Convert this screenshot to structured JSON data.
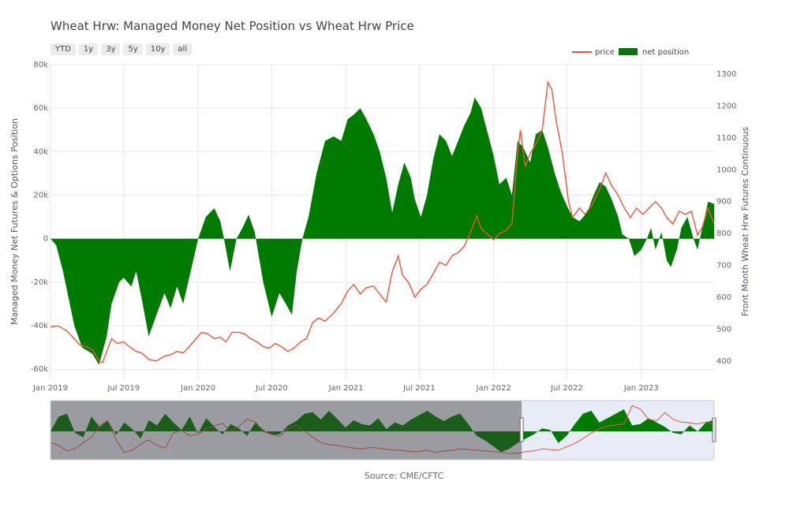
{
  "title": "Wheat Hrw: Managed Money Net Position vs Wheat Hrw Price",
  "range_buttons": [
    "YTD",
    "1y",
    "3y",
    "5y",
    "10y",
    "all"
  ],
  "source": "Source: CME/CFTC",
  "colors": {
    "price": "#e8563a",
    "net_position": "#007a00",
    "grid": "#e6e6e6"
  },
  "chart_data": {
    "type": "area",
    "title": "Wheat Hrw: Managed Money Net Position vs Wheat Hrw Price",
    "xlabel": "",
    "ylabel": "Managed Money Net Futures & Options Position",
    "y2label": "Front Month Wheat Hrw Futures Continuous",
    "xlim": [
      "2019-01-01",
      "2023-06-30"
    ],
    "ylim": [
      -65000,
      80000
    ],
    "y2lim": [
      340,
      1330
    ],
    "x_ticks": [
      "Jan 2019",
      "Jul 2019",
      "Jan 2020",
      "Jul 2020",
      "Jan 2021",
      "Jul 2021",
      "Jan 2022",
      "Jul 2022",
      "Jan 2023"
    ],
    "y_ticks": [
      "80k",
      "60k",
      "40k",
      "20k",
      "0",
      "-20k",
      "-40k",
      "-60k"
    ],
    "y2_ticks": [
      "1300",
      "1200",
      "1100",
      "1000",
      "900",
      "800",
      "700",
      "600",
      "500",
      "400"
    ],
    "legend_position": "top-right",
    "series": [
      {
        "name": "net position",
        "axis": "left",
        "style": "area",
        "points": [
          [
            "2019-01-01",
            0
          ],
          [
            "2019-01-15",
            -3000
          ],
          [
            "2019-02-01",
            -15000
          ],
          [
            "2019-03-01",
            -40000
          ],
          [
            "2019-03-20",
            -50000
          ],
          [
            "2019-04-15",
            -53000
          ],
          [
            "2019-05-01",
            -58000
          ],
          [
            "2019-05-20",
            -45000
          ],
          [
            "2019-06-01",
            -30000
          ],
          [
            "2019-06-20",
            -20000
          ],
          [
            "2019-07-01",
            -18000
          ],
          [
            "2019-07-20",
            -22000
          ],
          [
            "2019-08-01",
            -15000
          ],
          [
            "2019-08-15",
            -28000
          ],
          [
            "2019-09-01",
            -45000
          ],
          [
            "2019-09-20",
            -35000
          ],
          [
            "2019-10-10",
            -25000
          ],
          [
            "2019-10-25",
            -32000
          ],
          [
            "2019-11-10",
            -22000
          ],
          [
            "2019-11-25",
            -30000
          ],
          [
            "2019-12-10",
            -18000
          ],
          [
            "2019-12-20",
            -10000
          ],
          [
            "2020-01-01",
            0
          ],
          [
            "2020-01-20",
            10000
          ],
          [
            "2020-02-10",
            14000
          ],
          [
            "2020-02-25",
            8000
          ],
          [
            "2020-03-05",
            0
          ],
          [
            "2020-03-20",
            -15000
          ],
          [
            "2020-04-05",
            0
          ],
          [
            "2020-04-20",
            5000
          ],
          [
            "2020-05-05",
            11000
          ],
          [
            "2020-05-20",
            3000
          ],
          [
            "2020-06-10",
            -20000
          ],
          [
            "2020-07-01",
            -36000
          ],
          [
            "2020-07-20",
            -25000
          ],
          [
            "2020-08-05",
            -30000
          ],
          [
            "2020-08-20",
            -35000
          ],
          [
            "2020-09-01",
            -15000
          ],
          [
            "2020-09-15",
            0
          ],
          [
            "2020-09-30",
            10000
          ],
          [
            "2020-10-20",
            30000
          ],
          [
            "2020-11-10",
            45000
          ],
          [
            "2020-12-01",
            47000
          ],
          [
            "2020-12-20",
            45000
          ],
          [
            "2021-01-05",
            55000
          ],
          [
            "2021-01-20",
            57000
          ],
          [
            "2021-02-05",
            60000
          ],
          [
            "2021-02-20",
            55000
          ],
          [
            "2021-03-10",
            48000
          ],
          [
            "2021-03-25",
            40000
          ],
          [
            "2021-04-10",
            28000
          ],
          [
            "2021-04-25",
            12000
          ],
          [
            "2021-05-10",
            25000
          ],
          [
            "2021-05-25",
            35000
          ],
          [
            "2021-06-10",
            28000
          ],
          [
            "2021-06-20",
            18000
          ],
          [
            "2021-07-05",
            10000
          ],
          [
            "2021-07-20",
            20000
          ],
          [
            "2021-08-05",
            37000
          ],
          [
            "2021-08-20",
            48000
          ],
          [
            "2021-09-05",
            45000
          ],
          [
            "2021-09-20",
            38000
          ],
          [
            "2021-10-05",
            45000
          ],
          [
            "2021-10-20",
            52000
          ],
          [
            "2021-11-05",
            58000
          ],
          [
            "2021-11-15",
            65000
          ],
          [
            "2021-12-01",
            60000
          ],
          [
            "2021-12-15",
            50000
          ],
          [
            "2022-01-01",
            38000
          ],
          [
            "2022-01-15",
            25000
          ],
          [
            "2022-02-01",
            28000
          ],
          [
            "2022-02-15",
            20000
          ],
          [
            "2022-03-01",
            45000
          ],
          [
            "2022-03-15",
            42000
          ],
          [
            "2022-04-01",
            35000
          ],
          [
            "2022-04-15",
            48000
          ],
          [
            "2022-05-01",
            50000
          ],
          [
            "2022-05-15",
            42000
          ],
          [
            "2022-06-01",
            30000
          ],
          [
            "2022-06-15",
            22000
          ],
          [
            "2022-07-01",
            15000
          ],
          [
            "2022-07-15",
            10000
          ],
          [
            "2022-08-01",
            8000
          ],
          [
            "2022-08-20",
            12000
          ],
          [
            "2022-09-05",
            20000
          ],
          [
            "2022-09-20",
            26000
          ],
          [
            "2022-10-05",
            24000
          ],
          [
            "2022-10-20",
            18000
          ],
          [
            "2022-11-05",
            10000
          ],
          [
            "2022-11-15",
            2000
          ],
          [
            "2022-12-01",
            0
          ],
          [
            "2022-12-15",
            -8000
          ],
          [
            "2023-01-01",
            -5000
          ],
          [
            "2023-01-15",
            0
          ],
          [
            "2023-01-25",
            5000
          ],
          [
            "2023-02-05",
            -5000
          ],
          [
            "2023-02-20",
            3000
          ],
          [
            "2023-03-05",
            -10000
          ],
          [
            "2023-03-15",
            -13000
          ],
          [
            "2023-03-30",
            -5000
          ],
          [
            "2023-04-10",
            5000
          ],
          [
            "2023-04-25",
            10000
          ],
          [
            "2023-05-10",
            0
          ],
          [
            "2023-05-20",
            -5000
          ],
          [
            "2023-06-01",
            5000
          ],
          [
            "2023-06-15",
            17000
          ],
          [
            "2023-06-30",
            16000
          ]
        ]
      },
      {
        "name": "price",
        "axis": "right",
        "style": "line",
        "points": [
          [
            "2019-01-01",
            507
          ],
          [
            "2019-01-20",
            510
          ],
          [
            "2019-02-10",
            495
          ],
          [
            "2019-03-01",
            470
          ],
          [
            "2019-03-15",
            450
          ],
          [
            "2019-04-01",
            445
          ],
          [
            "2019-04-15",
            435
          ],
          [
            "2019-05-01",
            400
          ],
          [
            "2019-05-10",
            395
          ],
          [
            "2019-05-20",
            430
          ],
          [
            "2019-06-01",
            470
          ],
          [
            "2019-06-15",
            455
          ],
          [
            "2019-07-01",
            460
          ],
          [
            "2019-07-15",
            445
          ],
          [
            "2019-08-01",
            430
          ],
          [
            "2019-08-15",
            425
          ],
          [
            "2019-09-01",
            405
          ],
          [
            "2019-09-20",
            400
          ],
          [
            "2019-10-10",
            415
          ],
          [
            "2019-10-25",
            420
          ],
          [
            "2019-11-10",
            430
          ],
          [
            "2019-11-25",
            425
          ],
          [
            "2019-12-10",
            445
          ],
          [
            "2019-12-20",
            460
          ],
          [
            "2020-01-10",
            490
          ],
          [
            "2020-01-25",
            485
          ],
          [
            "2020-02-10",
            470
          ],
          [
            "2020-02-25",
            475
          ],
          [
            "2020-03-10",
            460
          ],
          [
            "2020-03-25",
            490
          ],
          [
            "2020-04-10",
            490
          ],
          [
            "2020-04-25",
            485
          ],
          [
            "2020-05-10",
            470
          ],
          [
            "2020-05-25",
            460
          ],
          [
            "2020-06-10",
            445
          ],
          [
            "2020-06-25",
            440
          ],
          [
            "2020-07-10",
            455
          ],
          [
            "2020-07-25",
            445
          ],
          [
            "2020-08-10",
            430
          ],
          [
            "2020-08-25",
            440
          ],
          [
            "2020-09-10",
            460
          ],
          [
            "2020-09-25",
            470
          ],
          [
            "2020-10-10",
            520
          ],
          [
            "2020-10-25",
            535
          ],
          [
            "2020-11-10",
            525
          ],
          [
            "2020-12-01",
            550
          ],
          [
            "2020-12-20",
            580
          ],
          [
            "2021-01-05",
            620
          ],
          [
            "2021-01-20",
            640
          ],
          [
            "2021-02-05",
            610
          ],
          [
            "2021-02-20",
            630
          ],
          [
            "2021-03-10",
            635
          ],
          [
            "2021-03-25",
            610
          ],
          [
            "2021-04-10",
            585
          ],
          [
            "2021-04-25",
            680
          ],
          [
            "2021-05-10",
            730
          ],
          [
            "2021-05-20",
            670
          ],
          [
            "2021-06-05",
            645
          ],
          [
            "2021-06-20",
            600
          ],
          [
            "2021-07-05",
            625
          ],
          [
            "2021-07-20",
            640
          ],
          [
            "2021-08-05",
            675
          ],
          [
            "2021-08-20",
            710
          ],
          [
            "2021-09-05",
            700
          ],
          [
            "2021-09-20",
            730
          ],
          [
            "2021-10-05",
            740
          ],
          [
            "2021-10-20",
            760
          ],
          [
            "2021-11-05",
            805
          ],
          [
            "2021-11-20",
            855
          ],
          [
            "2021-12-01",
            815
          ],
          [
            "2021-12-15",
            800
          ],
          [
            "2022-01-01",
            780
          ],
          [
            "2022-01-15",
            800
          ],
          [
            "2022-02-01",
            810
          ],
          [
            "2022-02-15",
            830
          ],
          [
            "2022-03-01",
            1050
          ],
          [
            "2022-03-08",
            1125
          ],
          [
            "2022-03-20",
            1010
          ],
          [
            "2022-04-01",
            1050
          ],
          [
            "2022-04-15",
            1080
          ],
          [
            "2022-05-01",
            1125
          ],
          [
            "2022-05-15",
            1275
          ],
          [
            "2022-05-25",
            1250
          ],
          [
            "2022-06-05",
            1150
          ],
          [
            "2022-06-20",
            1050
          ],
          [
            "2022-07-05",
            900
          ],
          [
            "2022-07-15",
            850
          ],
          [
            "2022-08-01",
            880
          ],
          [
            "2022-08-15",
            860
          ],
          [
            "2022-09-01",
            890
          ],
          [
            "2022-09-20",
            940
          ],
          [
            "2022-10-05",
            990
          ],
          [
            "2022-10-20",
            950
          ],
          [
            "2022-11-05",
            920
          ],
          [
            "2022-11-20",
            880
          ],
          [
            "2022-12-05",
            850
          ],
          [
            "2022-12-20",
            880
          ],
          [
            "2023-01-05",
            860
          ],
          [
            "2023-01-20",
            880
          ],
          [
            "2023-02-05",
            900
          ],
          [
            "2023-02-20",
            880
          ],
          [
            "2023-03-05",
            850
          ],
          [
            "2023-03-20",
            830
          ],
          [
            "2023-04-05",
            870
          ],
          [
            "2023-04-20",
            860
          ],
          [
            "2023-05-05",
            870
          ],
          [
            "2023-05-20",
            795
          ],
          [
            "2023-06-01",
            820
          ],
          [
            "2023-06-15",
            880
          ],
          [
            "2023-06-30",
            830
          ]
        ]
      }
    ],
    "navigator": {
      "xlim": [
        "2008-01-01",
        "2023-06-30"
      ],
      "selected_range": [
        "2019-01-01",
        "2023-06-30"
      ],
      "net_position": [
        0,
        20000,
        24000,
        -2000,
        -8000,
        20000,
        6000,
        15000,
        -5000,
        12000,
        3000,
        -10000,
        15000,
        8000,
        24000,
        12000,
        2000,
        20000,
        -3000,
        18000,
        6000,
        -4000,
        10000,
        4000,
        -6000,
        12000,
        2000,
        -5000,
        -4000,
        8000,
        14000,
        24000,
        26000,
        16000,
        28000,
        17000,
        5000,
        15000,
        10000,
        8000,
        18000,
        3000,
        12000,
        8000,
        16000,
        22000,
        28000,
        20000,
        14000,
        20000,
        24000,
        10000,
        -6000,
        -12000,
        -20000,
        -28000,
        -24000,
        -16000,
        -10000,
        -4000,
        4000,
        2000,
        -16000,
        -6000,
        10000,
        24000,
        28000,
        12000,
        18000,
        24000,
        30000,
        8000,
        10000,
        18000,
        12000,
        6000,
        -2000,
        -4000,
        8000,
        0,
        12000,
        16000
      ],
      "price": [
        560,
        520,
        440,
        470,
        560,
        640,
        810,
        880,
        600,
        420,
        450,
        540,
        600,
        520,
        480,
        700,
        740,
        660,
        680,
        760,
        810,
        840,
        720,
        800,
        900,
        860,
        720,
        680,
        650,
        760,
        820,
        730,
        640,
        560,
        530,
        520,
        500,
        480,
        470,
        490,
        480,
        460,
        450,
        445,
        430,
        430,
        450,
        420,
        440,
        445,
        470,
        460,
        450,
        440,
        430,
        420,
        400,
        405,
        430,
        440,
        470,
        460,
        450,
        500,
        550,
        620,
        700,
        760,
        800,
        820,
        830,
        1100,
        1050,
        900,
        880,
        1000,
        900,
        860,
        850,
        830,
        860,
        840
      ]
    }
  }
}
